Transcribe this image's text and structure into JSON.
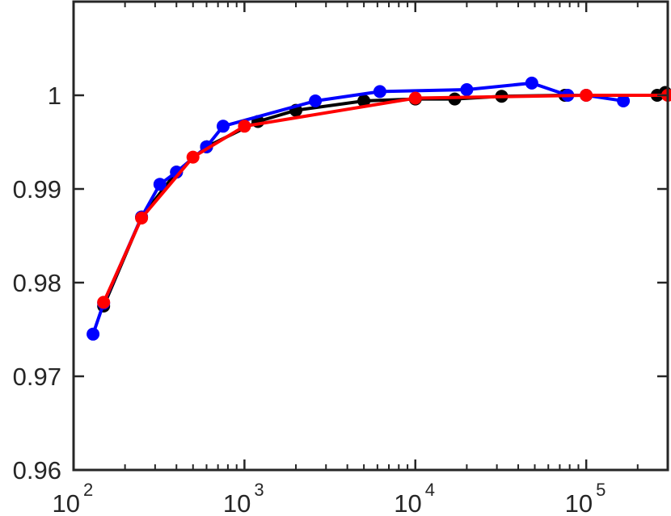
{
  "chart_data": {
    "type": "line",
    "title": "",
    "xlabel": "",
    "ylabel": "",
    "x_scale": "log",
    "xlim": [
      100,
      300000
    ],
    "ylim": [
      0.96,
      1.01
    ],
    "grid": false,
    "x_ticks": [
      {
        "value": 100,
        "base": "10",
        "exp": "2"
      },
      {
        "value": 1000,
        "base": "10",
        "exp": "3"
      },
      {
        "value": 10000,
        "base": "10",
        "exp": "4"
      },
      {
        "value": 100000,
        "base": "10",
        "exp": "5"
      }
    ],
    "y_ticks": [
      {
        "value": 0.96,
        "label": "0.96"
      },
      {
        "value": 0.97,
        "label": "0.97"
      },
      {
        "value": 0.98,
        "label": "0.98"
      },
      {
        "value": 0.99,
        "label": "0.99"
      },
      {
        "value": 1.0,
        "label": "1"
      }
    ],
    "series": [
      {
        "color": "#000000",
        "points": [
          [
            150,
            0.9775
          ],
          [
            250,
            0.987
          ],
          [
            400,
            0.9918
          ],
          [
            600,
            0.9945
          ],
          [
            1200,
            0.9972
          ],
          [
            2000,
            0.9984
          ],
          [
            5000,
            0.9994
          ],
          [
            10000,
            0.9996
          ],
          [
            17000,
            0.9996
          ],
          [
            32000,
            0.9999
          ],
          [
            75000,
            1.0
          ],
          [
            260000,
            1.0
          ],
          [
            290000,
            1.0003
          ]
        ]
      },
      {
        "color": "#0000ff",
        "points": [
          [
            130,
            0.9745
          ],
          [
            150,
            0.9778
          ],
          [
            250,
            0.987
          ],
          [
            320,
            0.9905
          ],
          [
            400,
            0.9918
          ],
          [
            600,
            0.9945
          ],
          [
            750,
            0.9967
          ],
          [
            2600,
            0.9994
          ],
          [
            6200,
            1.0004
          ],
          [
            20000,
            1.0006
          ],
          [
            48000,
            1.0013
          ],
          [
            78000,
            1.0
          ],
          [
            100000,
            1.0
          ],
          [
            165000,
            0.9994
          ]
        ]
      },
      {
        "color": "#ff0000",
        "points": [
          [
            150,
            0.9779
          ],
          [
            250,
            0.9869
          ],
          [
            500,
            0.9934
          ],
          [
            1000,
            0.9967
          ],
          [
            10000,
            0.9997
          ],
          [
            100000,
            1.0
          ],
          [
            300000,
            1.0
          ]
        ]
      }
    ]
  }
}
